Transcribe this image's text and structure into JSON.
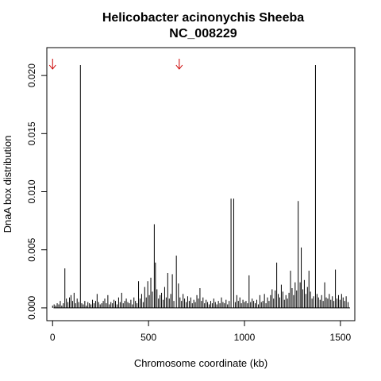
{
  "chart_data": {
    "type": "bar",
    "title": "Helicobacter acinonychis Sheeba",
    "subtitle": "NC_008229",
    "xlabel": "Chromosome coordinate (kb)",
    "ylabel": "DnaA box distribution",
    "xlim": [
      -30,
      1575
    ],
    "ylim": [
      -0.0011,
      0.0224
    ],
    "xticks": [
      0,
      500,
      1000,
      1500
    ],
    "xtick_labels": [
      "0",
      "500",
      "1000",
      "1500"
    ],
    "yticks": [
      0.0,
      0.005,
      0.01,
      0.015,
      0.02
    ],
    "ytick_labels": [
      "0.000",
      "0.005",
      "0.010",
      "0.015",
      "0.020"
    ],
    "grid": false,
    "bar_color": "#000000",
    "arrow_color": "#cc0000",
    "arrows_x": [
      0,
      660
    ],
    "x": [
      0,
      8,
      16,
      24,
      32,
      40,
      48,
      56,
      64,
      72,
      80,
      88,
      96,
      104,
      112,
      120,
      128,
      136,
      145,
      152,
      160,
      168,
      176,
      184,
      192,
      200,
      208,
      216,
      224,
      232,
      240,
      248,
      256,
      264,
      272,
      280,
      288,
      296,
      304,
      312,
      320,
      328,
      336,
      344,
      352,
      360,
      368,
      376,
      384,
      392,
      400,
      408,
      416,
      424,
      432,
      440,
      448,
      456,
      464,
      472,
      480,
      488,
      496,
      504,
      512,
      520,
      530,
      536,
      544,
      552,
      560,
      568,
      576,
      584,
      592,
      600,
      608,
      616,
      624,
      632,
      645,
      656,
      664,
      672,
      680,
      688,
      696,
      704,
      712,
      720,
      728,
      736,
      744,
      752,
      760,
      768,
      776,
      784,
      792,
      800,
      808,
      816,
      824,
      832,
      840,
      848,
      856,
      864,
      872,
      880,
      888,
      896,
      904,
      912,
      920,
      930,
      944,
      952,
      960,
      968,
      976,
      984,
      992,
      1000,
      1008,
      1016,
      1024,
      1032,
      1040,
      1048,
      1056,
      1064,
      1072,
      1080,
      1088,
      1096,
      1104,
      1112,
      1120,
      1128,
      1136,
      1144,
      1152,
      1160,
      1168,
      1176,
      1184,
      1192,
      1200,
      1208,
      1216,
      1224,
      1232,
      1240,
      1248,
      1256,
      1264,
      1272,
      1280,
      1290,
      1296,
      1304,
      1312,
      1320,
      1328,
      1336,
      1344,
      1352,
      1360,
      1370,
      1378,
      1386,
      1394,
      1402,
      1410,
      1418,
      1426,
      1434,
      1442,
      1450,
      1458,
      1466,
      1474,
      1482,
      1490,
      1498,
      1506,
      1514,
      1522,
      1530,
      1540
    ],
    "values": [
      0.0002,
      0.0003,
      0.0002,
      0.0004,
      0.0003,
      0.0006,
      0.0002,
      0.0004,
      0.0034,
      0.0008,
      0.0005,
      0.0009,
      0.0011,
      0.0006,
      0.0013,
      0.0004,
      0.0008,
      0.0005,
      0.0209,
      0.0004,
      0.0003,
      0.0006,
      0.0002,
      0.0005,
      0.0004,
      0.0003,
      0.0007,
      0.0004,
      0.0006,
      0.0012,
      0.0005,
      0.0003,
      0.0004,
      0.0006,
      0.0008,
      0.0004,
      0.0011,
      0.0003,
      0.0005,
      0.0004,
      0.0007,
      0.0006,
      0.0003,
      0.0009,
      0.0005,
      0.0013,
      0.0004,
      0.0006,
      0.0008,
      0.0005,
      0.0004,
      0.0007,
      0.0003,
      0.0009,
      0.0006,
      0.0004,
      0.0023,
      0.0008,
      0.0012,
      0.0005,
      0.0018,
      0.0009,
      0.0023,
      0.0011,
      0.0026,
      0.0014,
      0.0072,
      0.0039,
      0.0016,
      0.0008,
      0.0011,
      0.0013,
      0.0007,
      0.0018,
      0.0009,
      0.003,
      0.0008,
      0.0012,
      0.0029,
      0.0006,
      0.0045,
      0.0021,
      0.0009,
      0.0006,
      0.0012,
      0.0008,
      0.0005,
      0.001,
      0.0006,
      0.0009,
      0.0004,
      0.0007,
      0.0005,
      0.0011,
      0.0008,
      0.0017,
      0.0006,
      0.0009,
      0.0004,
      0.0007,
      0.0005,
      0.0003,
      0.0006,
      0.0004,
      0.0008,
      0.0005,
      0.0003,
      0.0006,
      0.0004,
      0.0009,
      0.0005,
      0.0004,
      0.0007,
      0.0003,
      0.0006,
      0.0094,
      0.0094,
      0.0005,
      0.0011,
      0.0006,
      0.0009,
      0.0004,
      0.0007,
      0.0005,
      0.0006,
      0.0004,
      0.0028,
      0.0005,
      0.0008,
      0.0006,
      0.0004,
      0.0007,
      0.0003,
      0.0011,
      0.0005,
      0.0006,
      0.0012,
      0.0004,
      0.0009,
      0.0006,
      0.0011,
      0.0016,
      0.0008,
      0.0015,
      0.0039,
      0.0012,
      0.0009,
      0.002,
      0.0014,
      0.0007,
      0.0011,
      0.0008,
      0.0013,
      0.0032,
      0.0017,
      0.0011,
      0.0022,
      0.0015,
      0.0092,
      0.0022,
      0.0052,
      0.0016,
      0.0024,
      0.0012,
      0.0018,
      0.0032,
      0.0014,
      0.0008,
      0.001,
      0.0209,
      0.0012,
      0.0009,
      0.0007,
      0.0011,
      0.0006,
      0.0022,
      0.0009,
      0.0008,
      0.0012,
      0.0007,
      0.001,
      0.0006,
      0.0033,
      0.0008,
      0.0011,
      0.0007,
      0.0012,
      0.0009,
      0.0006,
      0.001,
      0.0005
    ]
  }
}
